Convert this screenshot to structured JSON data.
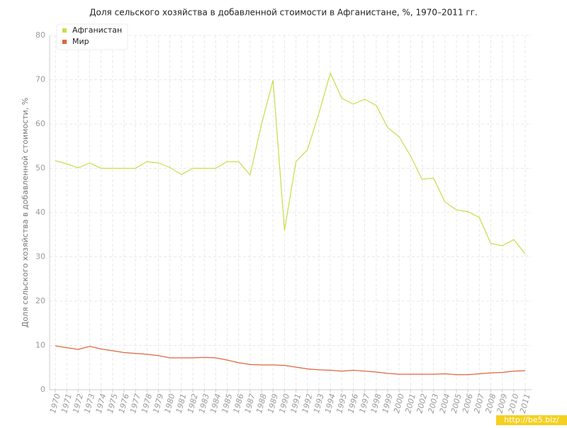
{
  "chart_data": {
    "type": "line",
    "title": "Доля сельского хозяйства в добавленной стоимости в Афганистане, %, 1970–2011 гг.",
    "y_label": "Доля сельского хозяйства в добавленной стоимости, %",
    "categories": [
      "1970",
      "1971",
      "1972",
      "1973",
      "1974",
      "1975",
      "1976",
      "1977",
      "1978",
      "1979",
      "1980",
      "1981",
      "1982",
      "1983",
      "1984",
      "1985",
      "1986",
      "1987",
      "1988",
      "1989",
      "1990",
      "1991",
      "1992",
      "1993",
      "1994",
      "1995",
      "1996",
      "1997",
      "1998",
      "1999",
      "2000",
      "2001",
      "2002",
      "2003",
      "2004",
      "2005",
      "2006",
      "2007",
      "2008",
      "2009",
      "2010",
      "2011"
    ],
    "series": [
      {
        "name": "Афганистан",
        "color": "#c3df48",
        "values": [
          51.7,
          51.0,
          50.1,
          51.2,
          50.0,
          50.0,
          50.0,
          50.0,
          51.5,
          51.2,
          50.2,
          48.6,
          50.0,
          50.0,
          50.0,
          51.5,
          51.5,
          48.5,
          60.0,
          69.9,
          36.0,
          51.5,
          54.2,
          62.4,
          71.5,
          65.8,
          64.5,
          65.6,
          64.2,
          59.2,
          57.1,
          52.8,
          47.5,
          47.8,
          42.4,
          40.6,
          40.2,
          38.9,
          33.0,
          32.5,
          33.9,
          30.7
        ]
      },
      {
        "name": "Мир",
        "color": "#e0653a",
        "values": [
          9.9,
          9.5,
          9.1,
          9.8,
          9.2,
          8.8,
          8.4,
          8.2,
          8.0,
          7.7,
          7.2,
          7.2,
          7.2,
          7.3,
          7.2,
          6.7,
          6.1,
          5.7,
          5.6,
          5.6,
          5.5,
          5.1,
          4.7,
          4.5,
          4.4,
          4.2,
          4.4,
          4.2,
          4.0,
          3.7,
          3.5,
          3.5,
          3.5,
          3.5,
          3.6,
          3.4,
          3.4,
          3.6,
          3.8,
          3.9,
          4.2,
          4.3
        ]
      }
    ],
    "ylim": [
      0,
      80
    ],
    "yticks": [
      0,
      10,
      20,
      30,
      40,
      50,
      60,
      70,
      80
    ],
    "grid": true,
    "legend": "top-left",
    "watermark": "http://be5.biz/"
  }
}
